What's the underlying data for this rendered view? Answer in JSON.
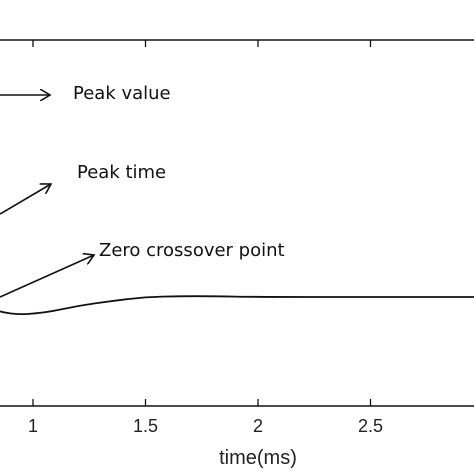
{
  "chart_data": {
    "type": "line",
    "xlabel": "time(ms)",
    "xlim": [
      0.6,
      3.0
    ],
    "x_ticks": [
      1,
      1.5,
      2,
      2.5
    ],
    "x_tick_labels": [
      "1",
      "1.5",
      "2",
      "2.5"
    ],
    "grid": false,
    "series": [
      {
        "style": "solid",
        "color": "#111111",
        "x": [
          0.6,
          0.75,
          0.9,
          1.05,
          1.2,
          1.35,
          1.5,
          1.65,
          1.8,
          2.0,
          2.5,
          3.0
        ],
        "y": [
          0.0,
          -0.018,
          -0.045,
          -0.04,
          -0.022,
          -0.01,
          0.0,
          0.002,
          0.002,
          0.0,
          0.0,
          0.0
        ]
      },
      {
        "style": "dashed",
        "color": "#111111",
        "x": [
          0.6,
          0.85
        ],
        "y": [
          0.0,
          0.0
        ]
      }
    ],
    "annotations": [
      {
        "text": "Peak value"
      },
      {
        "text": "Peak time"
      },
      {
        "text": "Zero crossover point"
      }
    ]
  }
}
